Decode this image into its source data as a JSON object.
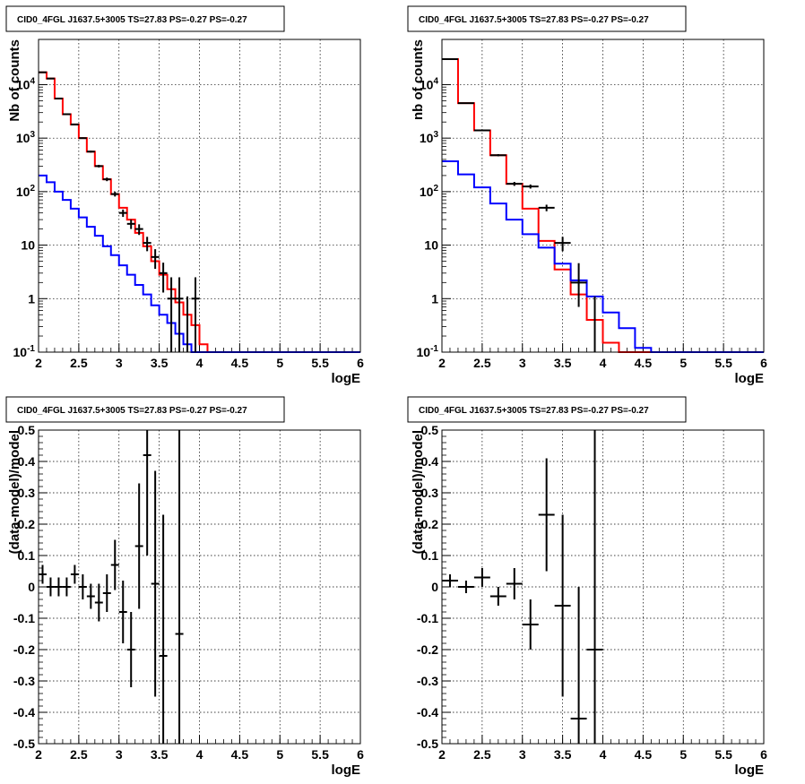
{
  "chart_data": [
    {
      "type": "line",
      "title": "CID0_4FGL J1637.5+3005 TS=27.83 PS=-0.27 PS=-0.27",
      "xlabel": "logE",
      "ylabel": "Nb of counts",
      "xlim": [
        2,
        6
      ],
      "ylim": [
        0.1,
        70000
      ],
      "yscale": "log",
      "grid": true,
      "x_ticks": [
        "2",
        "2.5",
        "3",
        "3.5",
        "4",
        "4.5",
        "5",
        "5.5",
        "6"
      ],
      "y_ticks": [
        "10-1",
        "1",
        "10",
        "102",
        "103",
        "104"
      ],
      "series": [
        {
          "color": "#ff0000",
          "style": "step",
          "edges": [
            2.0,
            2.1,
            2.2,
            2.3,
            2.4,
            2.5,
            2.6,
            2.7,
            2.8,
            2.9,
            3.0,
            3.1,
            3.2,
            3.3,
            3.4,
            3.5,
            3.6,
            3.7,
            3.8,
            3.9,
            4.0,
            4.1,
            4.2,
            4.3,
            4.4,
            4.5,
            4.6,
            4.7,
            4.8,
            4.9,
            5.0,
            5.1,
            5.2,
            5.3,
            5.4,
            5.5,
            5.6,
            5.7,
            5.8,
            5.9,
            6.0
          ],
          "values": [
            17000,
            13000,
            5500,
            2800,
            1800,
            1000,
            560,
            300,
            170,
            90,
            50,
            30,
            17,
            9.5,
            5,
            2.8,
            1.5,
            0.85,
            0.5,
            0.32,
            0.14,
            0.1,
            0.1,
            0.1,
            0.1,
            0.1,
            0.1,
            0.1,
            0.1,
            0.1,
            0.1,
            0.1,
            0.1,
            0.1,
            0.1,
            0.1,
            0.1,
            0.1,
            0.1,
            0.1
          ]
        },
        {
          "color": "#0000ff",
          "style": "step",
          "edges": [
            2.0,
            2.1,
            2.2,
            2.3,
            2.4,
            2.5,
            2.6,
            2.7,
            2.8,
            2.9,
            3.0,
            3.1,
            3.2,
            3.3,
            3.4,
            3.5,
            3.6,
            3.7,
            3.8,
            3.9,
            4.0,
            4.1,
            4.2,
            4.3,
            4.4,
            4.5,
            4.6,
            4.7,
            4.8,
            4.9,
            5.0,
            5.1,
            5.2,
            5.3,
            5.4,
            5.5,
            5.6,
            5.7,
            5.8,
            5.9,
            6.0
          ],
          "values": [
            200,
            150,
            100,
            70,
            48,
            33,
            22,
            15,
            9.5,
            6.5,
            4.2,
            2.8,
            1.8,
            1.2,
            0.75,
            0.5,
            0.35,
            0.22,
            0.14,
            0.1,
            0.1,
            0.1,
            0.1,
            0.1,
            0.1,
            0.1,
            0.1,
            0.1,
            0.1,
            0.1,
            0.1,
            0.1,
            0.1,
            0.1,
            0.1,
            0.1,
            0.1,
            0.1,
            0.1,
            0.1
          ]
        }
      ],
      "points": {
        "color": "#000000",
        "xerr": 0.05,
        "x": [
          2.05,
          2.15,
          2.25,
          2.35,
          2.45,
          2.55,
          2.65,
          2.75,
          2.85,
          2.95,
          3.05,
          3.15,
          3.25,
          3.35,
          3.45,
          3.55,
          3.65,
          3.75,
          3.85,
          3.95
        ],
        "y": [
          17000,
          13000,
          5500,
          2800,
          1800,
          1000,
          560,
          300,
          170,
          90,
          40,
          25,
          20,
          11,
          6,
          3,
          1,
          1,
          0,
          1
        ],
        "yerr_lo": [
          130,
          115,
          75,
          52,
          42,
          32,
          23,
          17,
          13,
          9,
          6.3,
          5,
          4.5,
          3.3,
          2.4,
          1.7,
          0.9,
          0.9,
          0,
          0.9
        ],
        "yerr_hi": [
          130,
          115,
          75,
          52,
          42,
          32,
          23,
          17,
          13,
          9,
          6.3,
          5,
          4.5,
          3.3,
          2.4,
          1.7,
          1.5,
          1.5,
          1.1,
          1.5
        ]
      }
    },
    {
      "type": "line",
      "title": "CID0_4FGL J1637.5+3005 TS=27.83 PS=-0.27 PS=-0.27",
      "xlabel": "logE",
      "ylabel": "nb of counts",
      "xlim": [
        2,
        6
      ],
      "ylim": [
        0.1,
        70000
      ],
      "yscale": "log",
      "grid": true,
      "x_ticks": [
        "2",
        "2.5",
        "3",
        "3.5",
        "4",
        "4.5",
        "5",
        "5.5",
        "6"
      ],
      "y_ticks": [
        "10-1",
        "1",
        "10",
        "102",
        "103",
        "104"
      ],
      "series": [
        {
          "color": "#ff0000",
          "style": "step",
          "edges": [
            2.0,
            2.2,
            2.4,
            2.6,
            2.8,
            3.0,
            3.2,
            3.4,
            3.6,
            3.8,
            4.0,
            4.2,
            4.4,
            4.6,
            4.8,
            5.0,
            5.2,
            5.4,
            5.6,
            5.8,
            6.0
          ],
          "values": [
            30000,
            4500,
            1400,
            480,
            140,
            48,
            12,
            3.5,
            1.2,
            0.4,
            0.15,
            0.1,
            0.1,
            0.1,
            0.1,
            0.1,
            0.1,
            0.1,
            0.1,
            0.1
          ]
        },
        {
          "color": "#0000ff",
          "style": "step",
          "edges": [
            2.0,
            2.2,
            2.4,
            2.6,
            2.8,
            3.0,
            3.2,
            3.4,
            3.6,
            3.8,
            4.0,
            4.2,
            4.4,
            4.6,
            4.8,
            5.0,
            5.2,
            5.4,
            5.6,
            5.8,
            6.0
          ],
          "values": [
            370,
            210,
            120,
            60,
            30,
            16,
            9,
            4.5,
            2.2,
            1.1,
            0.55,
            0.28,
            0.12,
            0.1,
            0.1,
            0.1,
            0.1,
            0.1,
            0.1,
            0.1
          ]
        }
      ],
      "points": {
        "color": "#000000",
        "xerr": 0.1,
        "x": [
          2.1,
          2.3,
          2.5,
          2.7,
          2.9,
          3.1,
          3.3,
          3.5,
          3.7,
          3.9
        ],
        "y": [
          30000,
          4500,
          1400,
          480,
          140,
          125,
          50,
          11,
          2,
          0
        ],
        "yerr_lo": [
          173,
          67,
          37,
          22,
          12,
          11,
          7,
          3.3,
          1.3,
          0
        ],
        "yerr_hi": [
          173,
          67,
          37,
          22,
          12,
          11,
          7,
          3.3,
          2.6,
          1.1
        ]
      }
    },
    {
      "type": "scatter",
      "title": "CID0_4FGL J1637.5+3005 TS=27.83 PS=-0.27 PS=-0.27",
      "xlabel": "logE",
      "ylabel": "(data-model)/model",
      "xlim": [
        2,
        6
      ],
      "ylim": [
        -0.5,
        0.5
      ],
      "grid": true,
      "x_ticks": [
        "2",
        "2.5",
        "3",
        "3.5",
        "4",
        "4.5",
        "5",
        "5.5",
        "6"
      ],
      "y_ticks": [
        "-0.5",
        "-0.4",
        "-0.3",
        "-0.2",
        "-0.1",
        "0",
        "0.1",
        "0.2",
        "0.3",
        "0.4",
        "0.5"
      ],
      "points": {
        "color": "#000000",
        "xerr": 0.05,
        "x": [
          2.05,
          2.15,
          2.25,
          2.35,
          2.45,
          2.55,
          2.65,
          2.75,
          2.85,
          2.95,
          3.05,
          3.15,
          3.25,
          3.35,
          3.45,
          3.55,
          3.75
        ],
        "y": [
          0.04,
          0.0,
          0.0,
          0.0,
          0.04,
          0.0,
          -0.03,
          -0.05,
          -0.02,
          0.07,
          -0.08,
          -0.2,
          0.13,
          0.42,
          0.01,
          -0.22,
          -0.15
        ],
        "yerr": [
          0.03,
          0.03,
          0.03,
          0.03,
          0.03,
          0.04,
          0.04,
          0.06,
          0.06,
          0.08,
          0.1,
          0.12,
          0.2,
          0.32,
          0.36,
          0.45,
          0.8
        ]
      }
    },
    {
      "type": "scatter",
      "title": "CID0_4FGL J1637.5+3005 TS=27.83 PS=-0.27 PS=-0.27",
      "xlabel": "logE",
      "ylabel": "(data-model)/model",
      "xlim": [
        2,
        6
      ],
      "ylim": [
        -0.5,
        0.5
      ],
      "grid": true,
      "x_ticks": [
        "2",
        "2.5",
        "3",
        "3.5",
        "4",
        "4.5",
        "5",
        "5.5",
        "6"
      ],
      "y_ticks": [
        "-0.5",
        "-0.4",
        "-0.3",
        "-0.2",
        "-0.1",
        "0",
        "0.1",
        "0.2",
        "0.3",
        "0.4",
        "0.5"
      ],
      "points": {
        "color": "#000000",
        "xerr": 0.1,
        "x": [
          2.1,
          2.3,
          2.5,
          2.7,
          2.9,
          3.1,
          3.3,
          3.5,
          3.7,
          3.9
        ],
        "y": [
          0.02,
          0.0,
          0.03,
          -0.03,
          0.01,
          -0.12,
          0.23,
          -0.06,
          -0.42,
          -0.2
        ],
        "yerr": [
          0.02,
          0.02,
          0.03,
          0.03,
          0.05,
          0.08,
          0.18,
          0.29,
          0.42,
          0.8
        ]
      }
    }
  ]
}
